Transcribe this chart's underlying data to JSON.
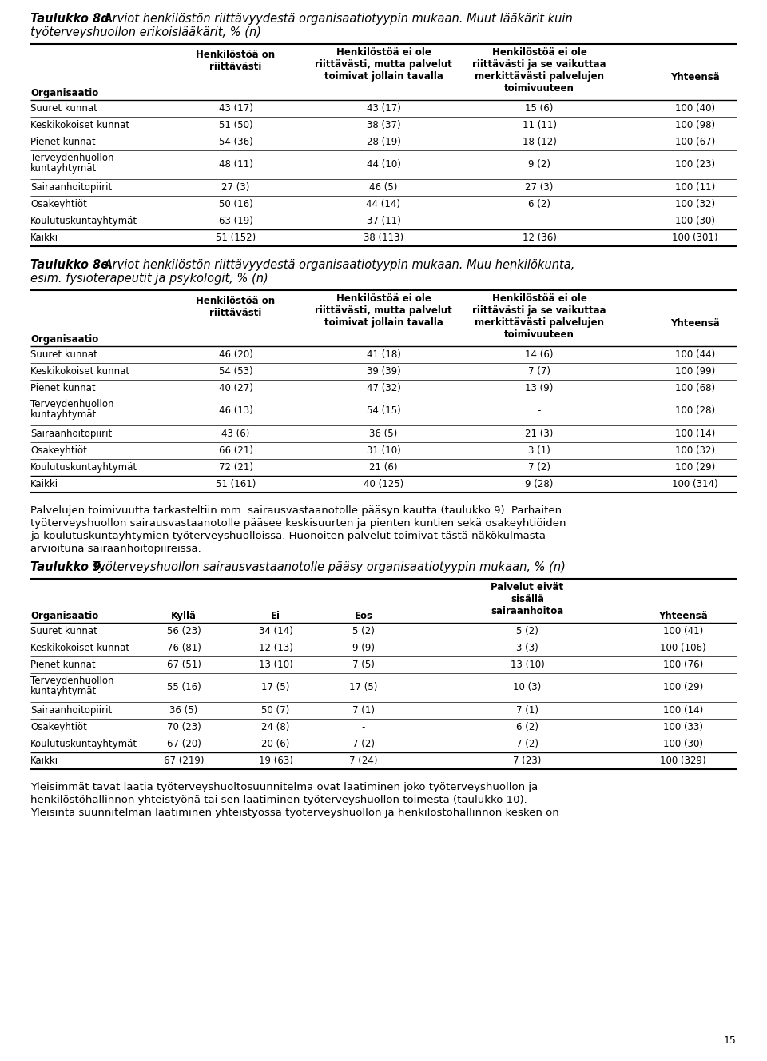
{
  "page_bg": "#ffffff",
  "title8d_bold": "Taulukko 8d.",
  "title8d_rest1": " Arviot henkilöstön riittävyydestä organisaatiotyypin mukaan. Muut lääkärit kuin",
  "title8d_rest2": "työterveyshuollon erikoislääkärit, % (n)",
  "title8e_bold": "Taulukko 8e.",
  "title8e_rest1": " Arviot henkilöstön riittävyydestä organisaatiotyypin mukaan. Muu henkilökunta,",
  "title8e_rest2": "esim. fysioterapeutit ja psykologit, % (n)",
  "title9_bold": "Taulukko 9.",
  "title9_rest": " Työterveyshuollon sairausvastaanotolle pääsy organisaatiotyypin mukaan, % (n)",
  "table8d_rows": [
    [
      "Suuret kunnat",
      "43 (17)",
      "43 (17)",
      "15 (6)",
      "100 (40)"
    ],
    [
      "Keskikokoiset kunnat",
      "51 (50)",
      "38 (37)",
      "11 (11)",
      "100 (98)"
    ],
    [
      "Pienet kunnat",
      "54 (36)",
      "28 (19)",
      "18 (12)",
      "100 (67)"
    ],
    [
      "Terveydenhuollon\nkuntayhtymät",
      "48 (11)",
      "44 (10)",
      "9 (2)",
      "100 (23)"
    ],
    [
      "Sairaanhoitopiirit",
      "27 (3)",
      "46 (5)",
      "27 (3)",
      "100 (11)"
    ],
    [
      "Osakeyhtiöt",
      "50 (16)",
      "44 (14)",
      "6 (2)",
      "100 (32)"
    ],
    [
      "Koulutuskuntayhtymät",
      "63 (19)",
      "37 (11)",
      "-",
      "100 (30)"
    ],
    [
      "Kaikki",
      "51 (152)",
      "38 (113)",
      "12 (36)",
      "100 (301)"
    ]
  ],
  "table8e_rows": [
    [
      "Suuret kunnat",
      "46 (20)",
      "41 (18)",
      "14 (6)",
      "100 (44)"
    ],
    [
      "Keskikokoiset kunnat",
      "54 (53)",
      "39 (39)",
      "7 (7)",
      "100 (99)"
    ],
    [
      "Pienet kunnat",
      "40 (27)",
      "47 (32)",
      "13 (9)",
      "100 (68)"
    ],
    [
      "Terveydenhuollon\nkuntayhtymät",
      "46 (13)",
      "54 (15)",
      "-",
      "100 (28)"
    ],
    [
      "Sairaanhoitopiirit",
      "43 (6)",
      "36 (5)",
      "21 (3)",
      "100 (14)"
    ],
    [
      "Osakeyhtiöt",
      "66 (21)",
      "31 (10)",
      "3 (1)",
      "100 (32)"
    ],
    [
      "Koulutuskuntayhtymät",
      "72 (21)",
      "21 (6)",
      "7 (2)",
      "100 (29)"
    ],
    [
      "Kaikki",
      "51 (161)",
      "40 (125)",
      "9 (28)",
      "100 (314)"
    ]
  ],
  "table9_rows": [
    [
      "Suuret kunnat",
      "56 (23)",
      "34 (14)",
      "5 (2)",
      "5 (2)",
      "100 (41)"
    ],
    [
      "Keskikokoiset kunnat",
      "76 (81)",
      "12 (13)",
      "9 (9)",
      "3 (3)",
      "100 (106)"
    ],
    [
      "Pienet kunnat",
      "67 (51)",
      "13 (10)",
      "7 (5)",
      "13 (10)",
      "100 (76)"
    ],
    [
      "Terveydenhuollon\nkuntayhtymät",
      "55 (16)",
      "17 (5)",
      "17 (5)",
      "10 (3)",
      "100 (29)"
    ],
    [
      "Sairaanhoitopiirit",
      "36 (5)",
      "50 (7)",
      "7 (1)",
      "7 (1)",
      "100 (14)"
    ],
    [
      "Osakeyhtiöt",
      "70 (23)",
      "24 (8)",
      "-",
      "6 (2)",
      "100 (33)"
    ],
    [
      "Koulutuskuntayhtymät",
      "67 (20)",
      "20 (6)",
      "7 (2)",
      "7 (2)",
      "100 (30)"
    ],
    [
      "Kaikki",
      "67 (219)",
      "19 (63)",
      "7 (24)",
      "7 (23)",
      "100 (329)"
    ]
  ],
  "paragraph_text": "Palvelujen toimivuutta tarkasteltiin mm. sairausvastaanotolle pääsyn kautta (taulukko 9). Parhaiten\ntyöterveyshuollon sairausvastaanotolle pääsee keskisuurten ja pienten kuntien sekä osakeyhtiöiden\nja koulutuskuntayhtymien työterveyshuolloissa. Huonoiten palvelut toimivat tästä näkökulmasta\narvioituna sairaanhoitopiireissä.",
  "footer_text": "Yleisimmät tavat laatia työterveyshuoltosuunnitelma ovat laatiminen joko työterveyshuollon ja\nhenkilöstöhallinnon yhteistyönä tai sen laatiminen työterveyshuollon toimesta (taulukko 10).\nYleisintä suunnitelman laatiminen yhteistyössä työterveyshuollon ja henkilöstöhallinnon kesken on",
  "page_number": "15",
  "lmargin": 38,
  "rmargin": 922,
  "font_body": 8.5,
  "font_title": 10.5,
  "font_para": 9.5
}
